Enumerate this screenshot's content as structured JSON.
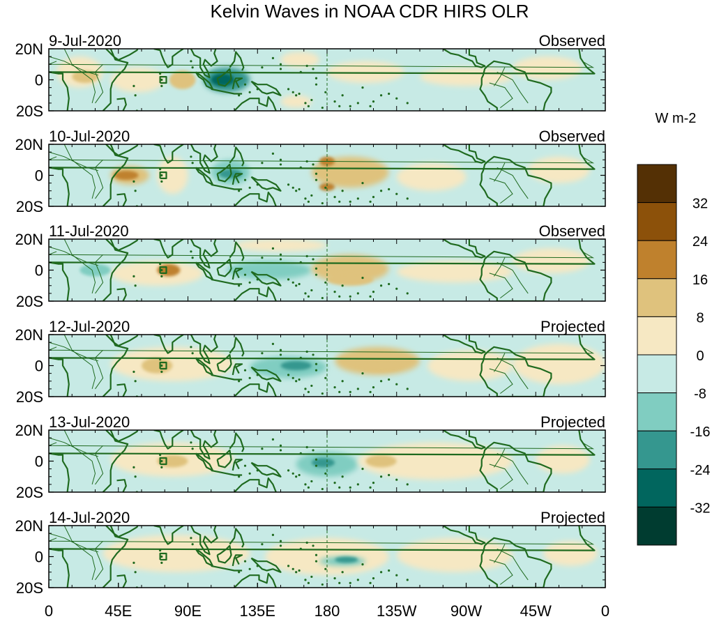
{
  "title": "Kelvin Waves in NOAA CDR HIRS OLR",
  "colorbar": {
    "units": "W m-2",
    "tick_labels": [
      "32",
      "24",
      "16",
      "8",
      "0",
      "-8",
      "-16",
      "-24",
      "-32"
    ],
    "colors": [
      "#543005",
      "#8c510a",
      "#bf812d",
      "#dfc27d",
      "#f6e8c3",
      "#c7eae5",
      "#80cdc1",
      "#35978f",
      "#01665e",
      "#003c30"
    ]
  },
  "lat_labels": [
    "20N",
    "0",
    "20S"
  ],
  "lon_labels": [
    "0",
    "45E",
    "90E",
    "135E",
    "180",
    "135W",
    "90W",
    "45W",
    "0"
  ],
  "coast_color": "#1f6a1f",
  "panels": [
    {
      "date": "9-Jul-2020",
      "status": "Observed"
    },
    {
      "date": "10-Jul-2020",
      "status": "Observed"
    },
    {
      "date": "11-Jul-2020",
      "status": "Observed"
    },
    {
      "date": "12-Jul-2020",
      "status": "Projected"
    },
    {
      "date": "13-Jul-2020",
      "status": "Projected"
    },
    {
      "date": "14-Jul-2020",
      "status": "Projected"
    }
  ]
}
